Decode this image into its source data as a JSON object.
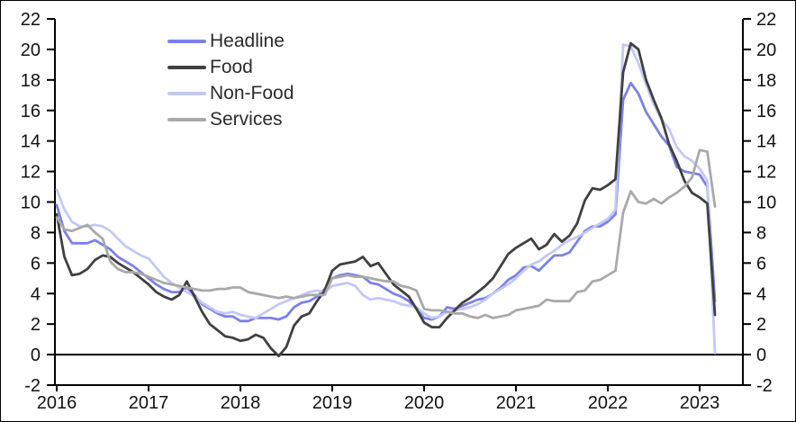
{
  "chart_data": {
    "type": "line",
    "title": "",
    "x_unit": "month",
    "x_start": "2016-01",
    "x_end": "2023-03",
    "x_tick_labels": [
      "2016",
      "2017",
      "2018",
      "2019",
      "2020",
      "2021",
      "2022",
      "2023"
    ],
    "y_ticks": [
      -2,
      0,
      2,
      4,
      6,
      8,
      10,
      12,
      14,
      16,
      18,
      20,
      22
    ],
    "ylim": [
      -2,
      22
    ],
    "dual_axis": true,
    "zero_line": true,
    "grid": false,
    "legend_position": "top-left-inside",
    "series": [
      {
        "name": "Headline",
        "color": "#7b81e9",
        "values": [
          9.8,
          8.1,
          7.3,
          7.3,
          7.3,
          7.5,
          7.2,
          6.9,
          6.4,
          6.1,
          5.8,
          5.4,
          5.0,
          4.6,
          4.3,
          4.1,
          4.1,
          4.4,
          3.9,
          3.3,
          3.0,
          2.7,
          2.5,
          2.5,
          2.2,
          2.2,
          2.4,
          2.4,
          2.4,
          2.3,
          2.5,
          3.1,
          3.4,
          3.5,
          3.8,
          4.3,
          5.0,
          5.2,
          5.3,
          5.2,
          5.1,
          4.7,
          4.6,
          4.3,
          4.0,
          3.8,
          3.5,
          3.0,
          2.4,
          2.3,
          2.5,
          3.1,
          3.0,
          3.2,
          3.4,
          3.6,
          3.7,
          4.0,
          4.4,
          4.9,
          5.2,
          5.7,
          5.8,
          5.5,
          6.0,
          6.5,
          6.5,
          6.7,
          7.4,
          8.1,
          8.4,
          8.4,
          8.7,
          9.2,
          16.7,
          17.8,
          17.1,
          15.9,
          15.1,
          14.3,
          13.7,
          12.3,
          12.0,
          11.9,
          11.8,
          11.0,
          3.5
        ]
      },
      {
        "name": "Food",
        "color": "#404040",
        "values": [
          9.2,
          6.4,
          5.2,
          5.3,
          5.6,
          6.2,
          6.5,
          6.4,
          6.0,
          5.7,
          5.4,
          5.0,
          4.6,
          4.1,
          3.8,
          3.6,
          3.9,
          4.8,
          3.8,
          2.8,
          2.0,
          1.6,
          1.2,
          1.1,
          0.9,
          1.0,
          1.3,
          1.1,
          0.4,
          -0.1,
          0.5,
          1.9,
          2.5,
          2.7,
          3.5,
          4.2,
          5.5,
          5.9,
          6.0,
          6.1,
          6.4,
          5.8,
          6.0,
          5.3,
          4.6,
          4.2,
          3.8,
          3.0,
          2.1,
          1.8,
          1.8,
          2.4,
          2.9,
          3.4,
          3.7,
          4.1,
          4.5,
          5.0,
          5.8,
          6.6,
          7.0,
          7.3,
          7.6,
          6.9,
          7.2,
          7.9,
          7.4,
          7.8,
          8.6,
          10.1,
          10.9,
          10.8,
          11.1,
          11.5,
          18.5,
          20.4,
          20.0,
          18.0,
          16.7,
          15.5,
          13.8,
          12.7,
          11.4,
          10.6,
          10.3,
          9.9,
          2.6
        ]
      },
      {
        "name": "Non-Food",
        "color": "#c4c8f6",
        "values": [
          10.8,
          9.5,
          8.7,
          8.4,
          8.4,
          8.5,
          8.4,
          8.1,
          7.6,
          7.1,
          6.8,
          6.5,
          6.3,
          5.7,
          5.1,
          4.7,
          4.4,
          4.1,
          3.8,
          3.4,
          3.1,
          2.8,
          2.7,
          2.8,
          2.6,
          2.5,
          2.4,
          2.7,
          3.0,
          3.3,
          3.5,
          3.7,
          3.9,
          4.1,
          4.2,
          4.1,
          4.5,
          4.6,
          4.7,
          4.5,
          3.9,
          3.6,
          3.7,
          3.6,
          3.5,
          3.3,
          3.2,
          3.1,
          2.7,
          2.4,
          2.5,
          2.8,
          2.9,
          3.0,
          3.1,
          3.3,
          3.6,
          4.0,
          4.3,
          4.6,
          5.0,
          5.5,
          5.9,
          6.1,
          6.5,
          6.8,
          7.2,
          7.5,
          7.7,
          8.0,
          8.3,
          8.6,
          8.9,
          9.5,
          20.3,
          20.2,
          19.1,
          17.7,
          16.4,
          15.4,
          14.8,
          13.6,
          13.0,
          12.7,
          12.2,
          11.4,
          0.1
        ]
      },
      {
        "name": "Services",
        "color": "#a9a9a9",
        "values": [
          9.0,
          8.2,
          8.1,
          8.3,
          8.5,
          8.0,
          7.6,
          6.1,
          5.6,
          5.4,
          5.4,
          5.3,
          5.1,
          4.9,
          4.7,
          4.6,
          4.5,
          4.4,
          4.3,
          4.2,
          4.2,
          4.3,
          4.3,
          4.4,
          4.4,
          4.1,
          4.0,
          3.9,
          3.8,
          3.7,
          3.8,
          3.7,
          3.8,
          3.9,
          3.9,
          3.9,
          5.0,
          5.1,
          5.2,
          5.1,
          5.1,
          5.0,
          4.9,
          4.8,
          4.8,
          4.5,
          4.4,
          4.2,
          3.0,
          2.9,
          2.9,
          2.8,
          2.7,
          2.7,
          2.5,
          2.4,
          2.6,
          2.4,
          2.5,
          2.6,
          2.9,
          3.0,
          3.1,
          3.2,
          3.6,
          3.5,
          3.5,
          3.5,
          4.1,
          4.2,
          4.8,
          4.9,
          5.2,
          5.5,
          9.3,
          10.7,
          10.0,
          9.9,
          10.2,
          9.9,
          10.3,
          10.6,
          11.0,
          11.6,
          13.4,
          13.3,
          9.7
        ]
      }
    ]
  }
}
